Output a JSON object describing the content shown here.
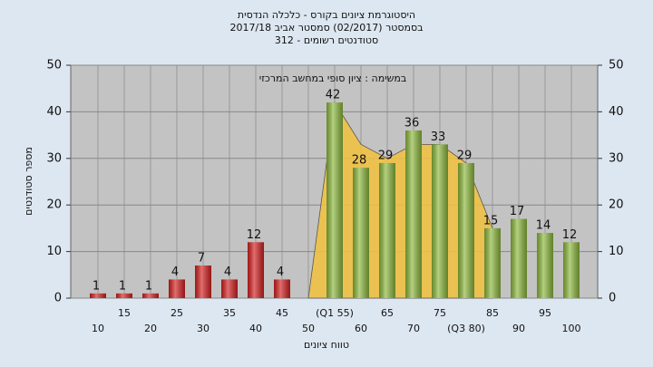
{
  "chart_data": {
    "type": "bar",
    "title": "היסטוגרמת ציונים בקורס - כלכלה הנדסית",
    "subtitle": "בסמסטר  (02/2017)  סמסטר אביב 2017/18",
    "subtitle2": "סטודנטים רשומים - 312",
    "annotation": "במשימה : ציון סופי במחשב המרכזי",
    "xlabel": "טווח ציונים",
    "ylabel": "מספר סטודנטים",
    "categories": [
      "10",
      "15",
      "20",
      "25",
      "30",
      "35",
      "40",
      "45",
      "50",
      "(Q1 55)",
      "60",
      "65",
      "70",
      "75",
      "(Q3 80)",
      "85",
      "90",
      "95",
      "100"
    ],
    "values": [
      1,
      1,
      1,
      4,
      7,
      4,
      12,
      4,
      null,
      42,
      28,
      29,
      36,
      33,
      29,
      15,
      17,
      14,
      12
    ],
    "bar_colors": [
      "#d42020",
      "#d42020",
      "#d42020",
      "#d42020",
      "#d42020",
      "#d42020",
      "#d42020",
      "#d42020",
      "#d42020",
      "#8cb83c",
      "#8cb83c",
      "#8cb83c",
      "#8cb83c",
      "#8cb83c",
      "#8cb83c",
      "#8cb83c",
      "#8cb83c",
      "#8cb83c",
      "#8cb83c"
    ],
    "area": {
      "color": "#f2c23e",
      "values": [
        null,
        null,
        null,
        null,
        null,
        null,
        null,
        null,
        0,
        42,
        33,
        30,
        33,
        33,
        29,
        15,
        null,
        null,
        null
      ]
    },
    "ylim": [
      0,
      50
    ],
    "yticks": [
      0,
      10,
      20,
      30,
      40,
      50
    ],
    "y2lim": [
      0,
      50
    ],
    "y2ticks": [
      0,
      10,
      20,
      30,
      40,
      50
    ],
    "grid": true
  }
}
